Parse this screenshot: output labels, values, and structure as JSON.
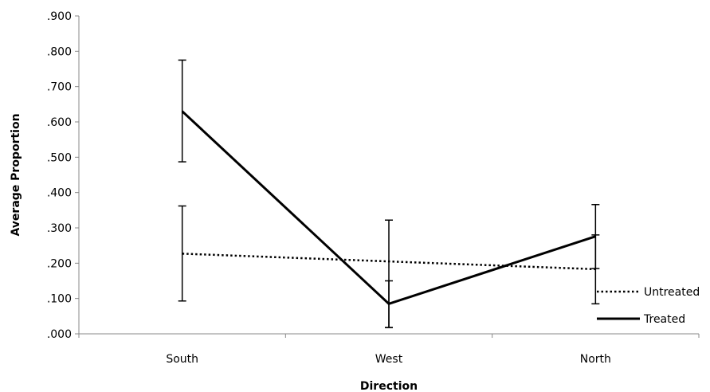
{
  "chart_data": {
    "type": "line",
    "title": "",
    "xlabel": "Direction",
    "ylabel": "Average Proportion",
    "categories": [
      "South",
      "West",
      "North"
    ],
    "ylim": [
      0,
      0.9
    ],
    "yticks": [
      ".000",
      ".100",
      ".200",
      ".300",
      ".400",
      ".500",
      ".600",
      ".700",
      ".800",
      ".900"
    ],
    "ytick_values": [
      0,
      0.1,
      0.2,
      0.3,
      0.4,
      0.5,
      0.6,
      0.7,
      0.8,
      0.9
    ],
    "grid": false,
    "legend": "right",
    "series": [
      {
        "name": "Untreated",
        "style": "dotted",
        "color": "#000000",
        "values": [
          0.227,
          0.205,
          0.183
        ],
        "error_low": [
          0.093,
          0.018,
          0.085
        ],
        "error_high": [
          0.362,
          0.322,
          0.28
        ]
      },
      {
        "name": "Treated",
        "style": "solid",
        "color": "#000000",
        "values": [
          0.63,
          0.085,
          0.276
        ],
        "error_low": [
          0.487,
          0.018,
          0.185
        ],
        "error_high": [
          0.775,
          0.15,
          0.366
        ]
      }
    ]
  }
}
